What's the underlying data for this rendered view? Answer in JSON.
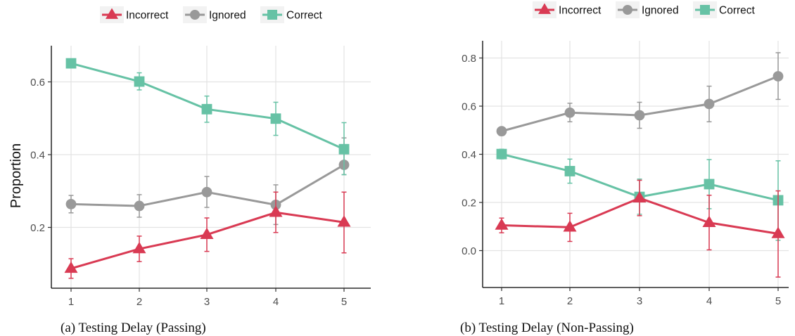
{
  "colors": {
    "Incorrect": "#d93a53",
    "Ignored": "#999999",
    "Correct": "#66c2a5"
  },
  "chart_data": [
    {
      "type": "line",
      "caption": "(a) Testing Delay (Passing)",
      "ylabel": "Proportion",
      "x": [
        1,
        2,
        3,
        4,
        5
      ],
      "xticks": [
        "1",
        "2",
        "3",
        "4",
        "5"
      ],
      "yticks": [
        "0.2",
        "0.4",
        "0.6"
      ],
      "ylim": [
        0.05,
        0.7
      ],
      "legend": [
        "Incorrect",
        "Ignored",
        "Correct"
      ],
      "legend_position": "top",
      "series": [
        {
          "name": "Incorrect",
          "marker": "triangle",
          "values": [
            0.087,
            0.141,
            0.18,
            0.241,
            0.214
          ],
          "lower": [
            0.06,
            0.106,
            0.134,
            0.186,
            0.13
          ],
          "upper": [
            0.114,
            0.176,
            0.226,
            0.297,
            0.297
          ]
        },
        {
          "name": "Ignored",
          "marker": "circle",
          "values": [
            0.264,
            0.259,
            0.297,
            0.262,
            0.372
          ],
          "lower": [
            0.24,
            0.228,
            0.255,
            0.208,
            0.345
          ],
          "upper": [
            0.288,
            0.29,
            0.34,
            0.317,
            0.446
          ]
        },
        {
          "name": "Correct",
          "marker": "square",
          "values": [
            0.651,
            0.601,
            0.525,
            0.499,
            0.415
          ],
          "lower": [
            0.64,
            0.578,
            0.489,
            0.453,
            0.345
          ],
          "upper": [
            0.662,
            0.625,
            0.561,
            0.544,
            0.488
          ]
        }
      ]
    },
    {
      "type": "line",
      "caption": "(b) Testing Delay (Non-Passing)",
      "ylabel": "",
      "x": [
        1,
        2,
        3,
        4,
        5
      ],
      "xticks": [
        "1",
        "2",
        "3",
        "4",
        "5"
      ],
      "yticks": [
        "0.0",
        "0.2",
        "0.4",
        "0.6",
        "0.8"
      ],
      "ylim": [
        -0.15,
        0.87
      ],
      "legend": [
        "Incorrect",
        "Ignored",
        "Correct"
      ],
      "legend_position": "top",
      "series": [
        {
          "name": "Incorrect",
          "marker": "triangle",
          "values": [
            0.105,
            0.097,
            0.218,
            0.116,
            0.07
          ],
          "lower": [
            0.074,
            0.038,
            0.145,
            0.003,
            -0.11
          ],
          "upper": [
            0.135,
            0.155,
            0.292,
            0.23,
            0.248
          ]
        },
        {
          "name": "Ignored",
          "marker": "circle",
          "values": [
            0.496,
            0.573,
            0.562,
            0.609,
            0.724
          ],
          "lower": [
            0.478,
            0.535,
            0.508,
            0.535,
            0.628
          ],
          "upper": [
            0.513,
            0.612,
            0.616,
            0.683,
            0.822
          ]
        },
        {
          "name": "Correct",
          "marker": "square",
          "values": [
            0.401,
            0.33,
            0.223,
            0.276,
            0.209
          ],
          "lower": [
            0.381,
            0.28,
            0.151,
            0.174,
            0.043
          ],
          "upper": [
            0.421,
            0.38,
            0.297,
            0.378,
            0.373
          ]
        }
      ]
    }
  ]
}
